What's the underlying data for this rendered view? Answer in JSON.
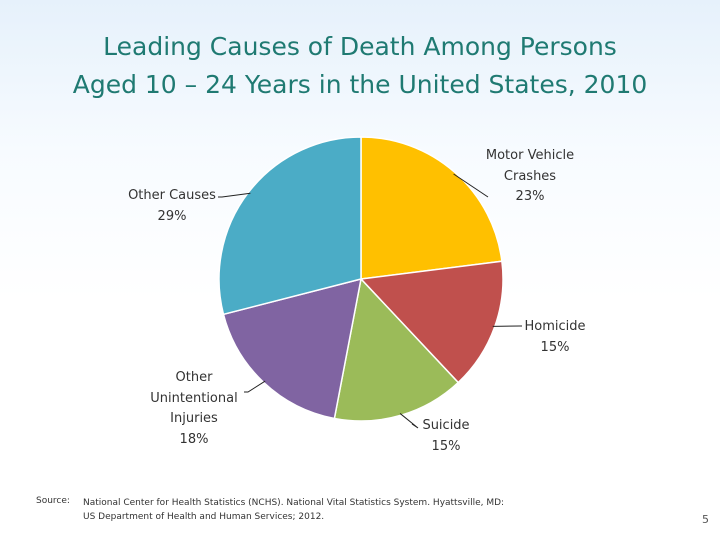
{
  "chart_data": {
    "type": "pie",
    "title": "Leading Causes of Death Among Persons Aged 10 – 24 Years in the United States, 2010",
    "slices": [
      {
        "name": "Motor Vehicle Crashes",
        "value": 23,
        "color": "#ffc000"
      },
      {
        "name": "Homicide",
        "value": 15,
        "color": "#c0504d"
      },
      {
        "name": "Suicide",
        "value": 15,
        "color": "#9bbb59"
      },
      {
        "name": "Other Unintentional Injuries",
        "value": 18,
        "color": "#8064a2"
      },
      {
        "name": "Other Causes",
        "value": 29,
        "color": "#4bacc6"
      }
    ]
  },
  "title_lines": [
    "Leading Causes of Death Among Persons",
    "Aged 10 – 24 Years in the United States, 2010"
  ],
  "labels": {
    "motor": [
      "Motor Vehicle",
      "Crashes",
      "23%"
    ],
    "homicide": [
      "Homicide",
      "15%"
    ],
    "suicide": [
      "Suicide",
      "15%"
    ],
    "other_unintentional": [
      "Other",
      "Unintentional",
      "Injuries",
      "18%"
    ],
    "other_causes": [
      "Other Causes",
      "29%"
    ]
  },
  "source": {
    "key": "Source:",
    "lines": [
      "National Center for Health Statistics (NCHS). National Vital Statistics System. Hyattsville, MD:",
      "US Department of Health and Human Services; 2012."
    ]
  },
  "page_number": "5"
}
